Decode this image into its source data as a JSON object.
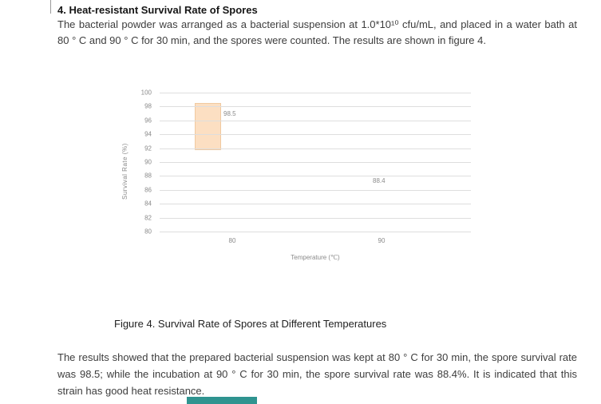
{
  "document": {
    "heading": "4. Heat-resistant Survival Rate of Spores",
    "paragraph1": "The bacterial powder was arranged as a bacterial suspension at 1.0*10¹⁰ cfu/mL, and placed in a water bath at 80 ° C and 90 ° C for 30 min, and the spores were counted. The results are shown in figure 4.",
    "figure_caption": "Figure 4. Survival Rate of Spores at Different Temperatures",
    "paragraph2": "The results showed that the prepared bacterial suspension was kept at 80 ° C for 30 min, the spore survival rate was 98.5; while the incubation at 90 ° C for 30 min, the spore survival rate was 88.4%. It is indicated that this strain has good heat resistance."
  },
  "chart_data": {
    "type": "bar",
    "title": "",
    "categories": [
      "80",
      "90"
    ],
    "values": [
      98.5,
      88.4
    ],
    "data_labels": [
      "98.5",
      "88.4"
    ],
    "xlabel": "Temperature (℃)",
    "ylabel": "Survival Rate (%)",
    "ylim": [
      80,
      100
    ],
    "yticks": [
      100,
      98,
      96,
      94,
      92,
      90,
      88,
      86,
      84,
      82,
      80
    ],
    "grid": true,
    "legend": "none",
    "bar_color": "#fcdfc2",
    "render_note": "only the 80℃ bar is visibly drawn; the 90℃ value appears as a text label only"
  },
  "colors": {
    "bar_fill": "#fcdfc2",
    "bar_border": "#f0c9a0",
    "gridline": "#dedede",
    "chart_text": "#8a8a8a",
    "body_text": "#3d3d3d",
    "footer_teal": "#2f9490"
  }
}
